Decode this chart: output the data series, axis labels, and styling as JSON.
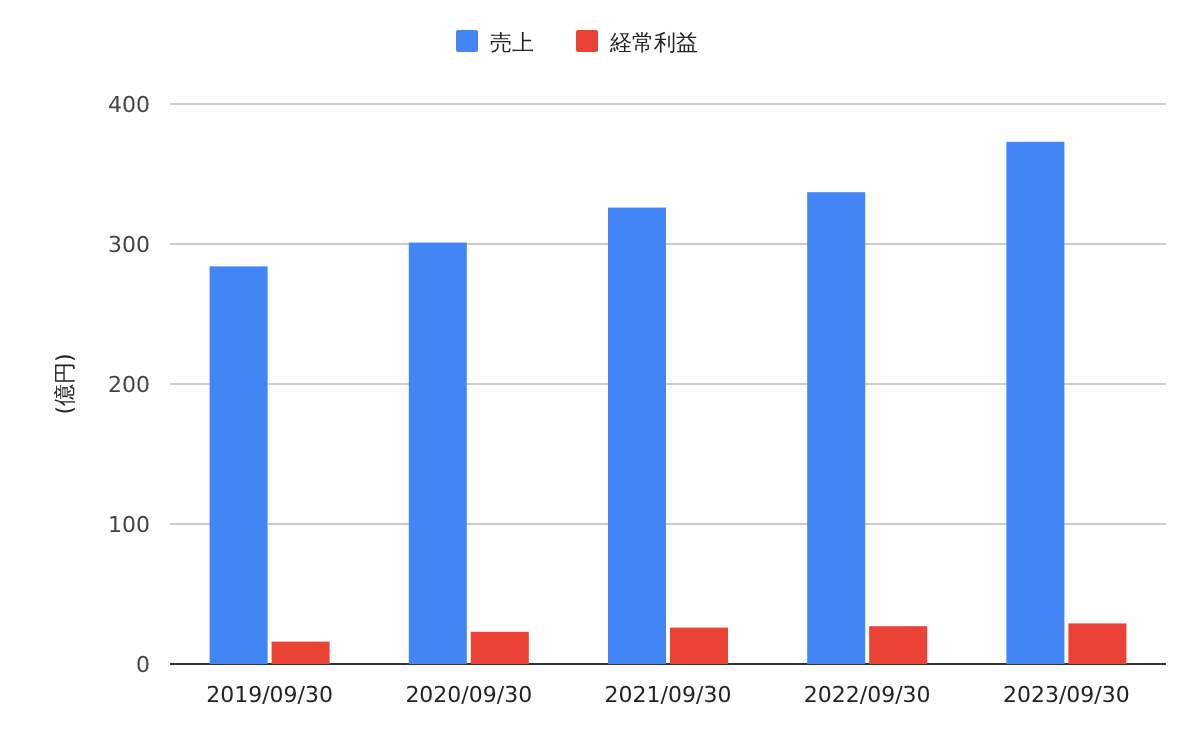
{
  "chart_data": {
    "type": "bar",
    "ylabel": "(億円)",
    "categories": [
      "2019/09/30",
      "2020/09/30",
      "2021/09/30",
      "2022/09/30",
      "2023/09/30"
    ],
    "series": [
      {
        "name": "売上",
        "color": "#4285f4",
        "values": [
          284,
          301,
          326,
          337,
          373
        ]
      },
      {
        "name": "経常利益",
        "color": "#ea4335",
        "values": [
          16,
          23,
          26,
          27,
          29
        ]
      }
    ],
    "ylim": [
      0,
      400
    ],
    "yticks": [
      0,
      100,
      200,
      300,
      400
    ],
    "grid": "y",
    "legend": "top"
  }
}
